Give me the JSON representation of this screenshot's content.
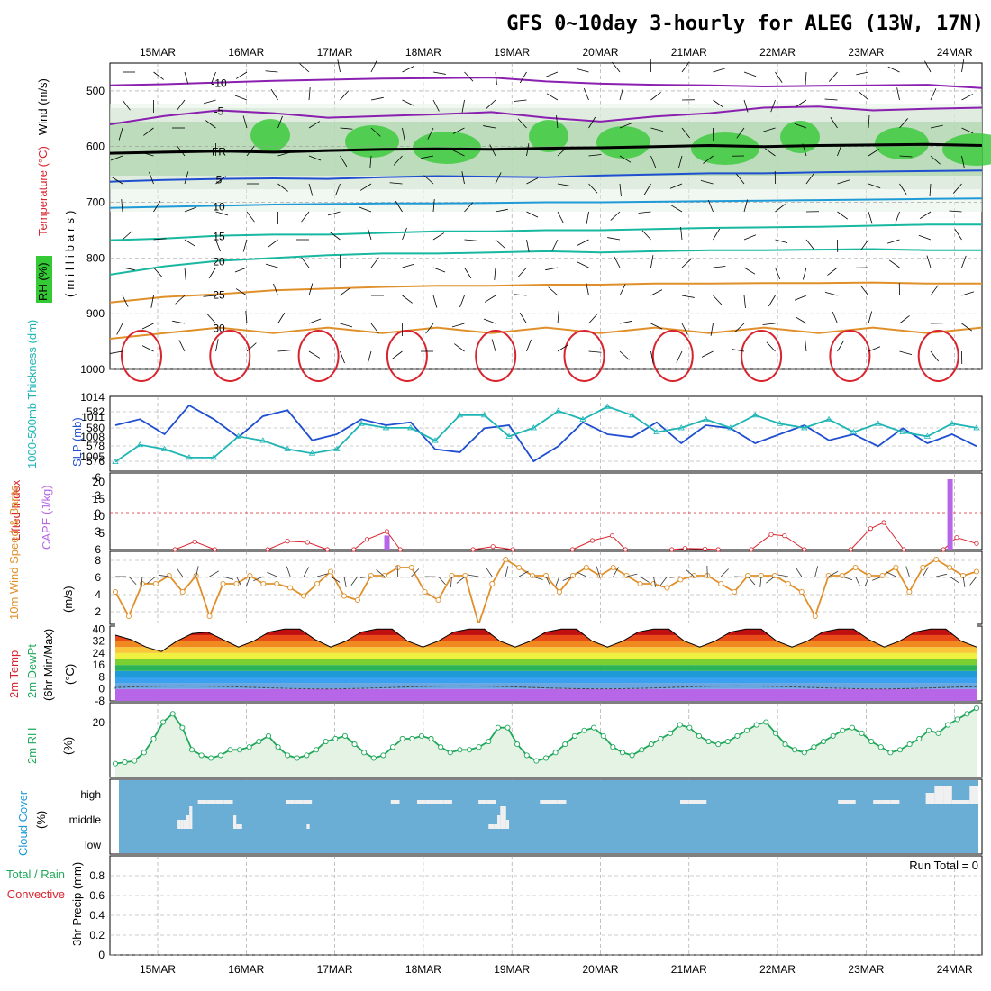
{
  "title": "GFS 0~10day 3-hourly for ALEG (13W, 17N)",
  "dates": [
    "15MAR",
    "16MAR",
    "17MAR",
    "18MAR",
    "19MAR",
    "20MAR",
    "21MAR",
    "22MAR",
    "23MAR",
    "24MAR"
  ],
  "colors": {
    "purple": "#8a1fb0",
    "blue": "#1f4fd0",
    "cyan": "#1e9bd6",
    "teal": "#17b7a0",
    "green": "#1fa85a",
    "orange": "#e0902a",
    "red": "#d8242e",
    "rhgreen": "#36c936"
  },
  "chart_data": [
    {
      "type": "contour",
      "name": "upper-air-cross-section",
      "ylabel": "(millibars)",
      "labels": {
        "wind": "Wind (m/s)",
        "temp": "Temperature (°C)",
        "rh": "RH (%)"
      },
      "y_ticks": [
        500,
        600,
        700,
        800,
        900,
        1000
      ],
      "ylim": [
        1000,
        450
      ],
      "isotherms": [
        {
          "value": -10,
          "label": "-10",
          "levels": [
            490,
            488,
            485,
            482,
            480,
            478,
            477,
            476,
            483,
            487,
            489,
            490,
            492,
            491,
            490,
            489,
            495
          ]
        },
        {
          "value": -5,
          "label": "-5",
          "levels": [
            560,
            545,
            535,
            540,
            548,
            545,
            542,
            538,
            548,
            555,
            546,
            540,
            530,
            528,
            535,
            532,
            530
          ]
        },
        {
          "value": 0,
          "label": "FR",
          "levels": [
            612,
            610,
            608,
            610,
            607,
            605,
            604,
            605,
            603,
            602,
            600,
            598,
            600,
            598,
            597,
            596,
            598
          ]
        },
        {
          "value": 5,
          "label": "5",
          "levels": [
            663,
            660,
            658,
            657,
            658,
            655,
            653,
            654,
            655,
            652,
            650,
            648,
            648,
            646,
            645,
            644,
            643
          ]
        },
        {
          "value": 10,
          "label": "10",
          "levels": [
            710,
            708,
            706,
            704,
            703,
            702,
            702,
            701,
            700,
            700,
            699,
            698,
            697,
            696,
            695,
            694,
            693
          ]
        },
        {
          "value": 15,
          "label": "15",
          "levels": [
            768,
            765,
            760,
            758,
            758,
            755,
            752,
            752,
            750,
            750,
            748,
            746,
            745,
            744,
            742,
            740,
            740
          ]
        },
        {
          "value": 20,
          "label": "20",
          "levels": [
            830,
            815,
            805,
            800,
            795,
            792,
            792,
            790,
            788,
            790,
            788,
            786,
            786,
            785,
            784,
            786,
            786
          ]
        },
        {
          "value": 25,
          "label": "25",
          "levels": [
            880,
            870,
            865,
            858,
            855,
            852,
            850,
            850,
            848,
            848,
            846,
            846,
            845,
            845,
            844,
            846,
            846
          ]
        },
        {
          "value": 30,
          "label": "30",
          "levels": [
            945,
            935,
            925,
            935,
            925,
            935,
            925,
            935,
            925,
            935,
            925,
            935,
            925,
            935,
            925,
            935,
            925
          ]
        }
      ]
    },
    {
      "type": "line",
      "name": "thickness-slp",
      "labels": {
        "thickness": "1000-500mb Thickness (dm)",
        "slp": "SLP (mb)"
      },
      "y_ticks_left": [
        "582",
        "580",
        "578",
        "576"
      ],
      "y_ticks_right": [
        "1014",
        "1011",
        "1008",
        "1005"
      ],
      "series": [
        {
          "name": "SLP (mb)",
          "color": "#1f4fd0",
          "values": [
            1010.5,
            1011.5,
            1009,
            1013.8,
            1011.5,
            1008.5,
            1012,
            1013,
            1008,
            1009,
            1011.5,
            1010.5,
            1011,
            1006.5,
            1006,
            1010,
            1010.5,
            1004.5,
            1007,
            1011,
            1009,
            1008.5,
            1011,
            1007.5,
            1010.5,
            1010,
            1007.5,
            1009,
            1010.5,
            1008,
            1009,
            1007,
            1010,
            1007.5,
            1009,
            1007
          ]
        },
        {
          "name": "Thickness (dm)",
          "color": "#1fb5b5",
          "values": [
            575.5,
            577.5,
            577,
            576,
            576,
            578.5,
            578,
            577,
            576.5,
            577,
            580,
            579.5,
            579.5,
            578,
            581,
            581,
            578.5,
            579.5,
            581.5,
            580.5,
            582,
            581,
            579,
            579.5,
            580.5,
            579.5,
            581,
            580,
            579.5,
            580.5,
            579,
            580,
            579,
            578.5,
            580,
            579.5
          ]
        }
      ]
    },
    {
      "type": "line",
      "name": "cape-lifted-index",
      "labels": {
        "li": "Lifted Index",
        "cape": "CAPE (J/kg)"
      },
      "y_ticks_left": [
        "-6",
        "-3",
        "0",
        "3",
        "6"
      ],
      "y_ticks_right": [
        "20",
        "15",
        "10",
        "5"
      ],
      "segments": [
        {
          "x": [
            0.9,
            1.2,
            1.5
          ],
          "values": [
            6,
            4.7,
            6
          ]
        },
        {
          "x": [
            2.3,
            2.6,
            2.9,
            3.2
          ],
          "values": [
            6,
            4.6,
            4.8,
            6
          ]
        },
        {
          "x": [
            3.6,
            3.8,
            4.1,
            4.3
          ],
          "values": [
            6,
            4.3,
            3,
            6
          ]
        },
        {
          "x": [
            5.4,
            5.7,
            6.0
          ],
          "values": [
            6,
            5.5,
            6
          ]
        },
        {
          "x": [
            6.9,
            7.2,
            7.5,
            7.7
          ],
          "values": [
            6,
            4.5,
            3.7,
            6
          ]
        },
        {
          "x": [
            8.4,
            8.6,
            8.9,
            9.1
          ],
          "values": [
            6,
            5.8,
            5.9,
            6
          ]
        },
        {
          "x": [
            9.6,
            9.9,
            10.1,
            10.4
          ],
          "values": [
            6,
            3.5,
            3.7,
            6
          ]
        },
        {
          "x": [
            11.1,
            11.4,
            11.6,
            11.9
          ],
          "values": [
            6,
            2.5,
            1.5,
            6
          ]
        },
        {
          "x": [
            12.5,
            12.7,
            13.0
          ],
          "values": [
            6,
            4.0,
            5.0
          ]
        }
      ],
      "cape_bars": [
        {
          "x": 4.1,
          "value": 4
        },
        {
          "x": 12.6,
          "value": 20
        }
      ]
    },
    {
      "type": "line",
      "name": "10m-wind-speed",
      "labels": {
        "main": "10m Wind Speed & Barbs",
        "unit": "(m/s)"
      },
      "y_ticks": [
        "8",
        "6",
        "4",
        "2"
      ],
      "values": [
        4,
        1,
        5,
        5,
        6,
        4,
        6,
        1,
        5,
        5,
        6,
        5,
        5,
        4.5,
        3.5,
        5,
        6.5,
        3.5,
        3,
        6,
        6,
        7,
        7,
        4,
        3,
        6,
        6,
        0,
        5,
        8,
        7,
        6,
        6,
        4,
        6,
        7,
        6,
        7,
        6,
        5,
        5,
        4.5,
        5.5,
        6,
        6,
        5,
        4,
        6,
        6,
        6,
        5,
        4,
        1,
        6,
        6,
        7,
        6,
        6,
        7,
        4,
        7,
        8,
        7,
        6,
        6.5
      ]
    },
    {
      "type": "area",
      "name": "2m-temperature",
      "labels": {
        "temp": "2m Temp",
        "dewpt": "2m DewPt",
        "minmax": "(6hr Min/Max)",
        "unit": "(°C)"
      },
      "y_ticks": [
        "40",
        "32",
        "24",
        "16",
        "8",
        "0",
        "-8"
      ],
      "temps": [
        36,
        33,
        28,
        25,
        32,
        37,
        38,
        33,
        28,
        32,
        38,
        40,
        40,
        33,
        28,
        32,
        38,
        40,
        40,
        32,
        28,
        32,
        38,
        40,
        40,
        32,
        28,
        32,
        38,
        40,
        40,
        32,
        28,
        32,
        38,
        40,
        40,
        32,
        28,
        32,
        38,
        40,
        40,
        32,
        28,
        32,
        38,
        40,
        40,
        33,
        28,
        32,
        38,
        40,
        40,
        32,
        28
      ]
    },
    {
      "type": "line",
      "name": "2m-relative-humidity",
      "labels": {
        "main": "2m RH",
        "unit": "(%)"
      },
      "y_ticks": [
        "20"
      ],
      "values": [
        5,
        5.5,
        6,
        9,
        14,
        20,
        23,
        18,
        10,
        8,
        7,
        8,
        10,
        10,
        11,
        13,
        15,
        11,
        8,
        7,
        8,
        10,
        13,
        14,
        15,
        12,
        9,
        7,
        8,
        11,
        14,
        14,
        15,
        14,
        11,
        9,
        10,
        10,
        11,
        13,
        18,
        18,
        12,
        8,
        6,
        7,
        9,
        12,
        15,
        17,
        18,
        15,
        11,
        9,
        8,
        10,
        12,
        14,
        16,
        19,
        18,
        15,
        13,
        12,
        13,
        15,
        17,
        19,
        20,
        16,
        12,
        10,
        9,
        11,
        13,
        15,
        17,
        18,
        16,
        13,
        11,
        9,
        10,
        12,
        14,
        17,
        16,
        19,
        21,
        23,
        25
      ]
    },
    {
      "type": "bar",
      "name": "cloud-cover",
      "labels": {
        "main": "Cloud Cover",
        "unit": "(%)"
      },
      "levels": [
        "high",
        "middle",
        "low"
      ],
      "high": [
        0,
        0,
        0,
        0,
        0,
        0,
        0,
        0,
        0,
        20,
        20,
        20,
        20,
        0,
        0,
        0,
        0,
        0,
        0,
        20,
        20,
        20,
        0,
        0,
        0,
        0,
        0,
        0,
        0,
        0,
        0,
        20,
        0,
        0,
        20,
        20,
        20,
        20,
        0,
        0,
        0,
        20,
        20,
        0,
        0,
        0,
        0,
        0,
        20,
        20,
        20,
        0,
        0,
        0,
        0,
        0,
        0,
        0,
        0,
        0,
        0,
        0,
        0,
        0,
        20,
        20,
        20,
        0,
        0,
        0,
        0,
        0,
        0,
        0,
        0,
        0,
        0,
        0,
        0,
        0,
        0,
        0,
        20,
        20,
        0,
        0,
        20,
        20,
        20,
        0,
        0,
        0,
        60,
        100,
        100,
        20,
        20,
        100
      ],
      "middle": [
        0,
        0,
        0,
        0,
        0,
        0,
        0,
        0,
        0,
        0,
        0,
        0,
        0,
        0,
        0,
        0,
        0,
        0,
        0,
        0,
        40,
        40,
        40,
        60,
        100,
        0,
        0,
        0,
        0,
        0,
        0,
        0,
        0,
        0,
        0,
        0,
        0,
        0,
        0,
        60,
        20,
        20,
        0,
        0,
        0,
        0,
        0,
        0,
        0,
        0,
        0,
        0,
        0,
        0,
        0,
        0,
        0,
        0,
        0,
        0,
        0,
        0,
        0,
        0,
        20,
        0,
        0,
        0,
        0,
        0,
        0,
        0,
        0,
        0,
        0,
        0,
        0,
        0,
        0,
        0,
        0,
        0,
        0,
        0,
        0,
        0,
        0,
        0,
        0,
        0,
        0,
        0,
        0,
        0,
        0,
        0,
        0,
        0,
        0,
        0,
        0,
        0,
        0,
        0,
        0,
        0,
        0,
        0,
        0,
        0,
        0,
        0,
        0,
        0,
        0,
        0,
        0,
        0,
        0,
        0,
        0,
        0,
        0,
        0,
        0,
        0,
        20,
        20,
        20,
        60,
        100,
        100,
        40,
        0,
        0,
        0,
        0,
        0,
        0,
        0,
        0,
        0,
        0,
        0,
        0,
        0,
        0,
        0,
        0,
        0,
        0,
        0,
        0,
        0,
        0,
        0,
        0,
        0,
        0,
        0,
        0,
        0,
        0,
        0,
        0,
        0,
        0,
        0,
        0,
        0,
        0,
        0,
        0,
        0,
        0,
        0,
        0,
        0,
        0,
        0,
        0,
        0,
        0,
        0,
        0,
        0,
        0,
        0,
        0,
        0,
        0,
        0,
        0,
        0,
        0,
        0,
        0,
        0,
        0,
        0,
        0,
        0,
        0,
        0,
        0,
        0,
        0,
        0,
        0,
        0,
        0,
        0,
        0,
        0,
        0,
        0,
        0,
        0,
        0,
        0,
        0,
        0,
        0,
        0,
        0,
        0,
        0,
        0,
        0,
        0,
        0,
        0,
        0,
        0,
        0,
        0,
        0,
        0,
        0,
        0,
        0,
        0,
        0,
        0,
        0,
        0,
        0,
        0,
        0,
        0,
        0,
        0,
        0,
        0,
        0,
        0,
        0,
        0,
        0,
        0,
        0,
        0,
        0,
        0,
        0,
        0,
        0,
        0,
        0,
        0,
        0,
        0,
        0,
        0,
        0,
        0,
        0,
        0,
        0,
        0,
        0,
        0,
        0,
        0,
        0,
        0,
        0,
        0,
        0,
        0,
        0,
        0,
        0
      ]
    },
    {
      "type": "bar",
      "name": "3hr-precip",
      "labels": {
        "main": "3hr Precip (mm)",
        "total": "Total / Rain",
        "convective": "Convective"
      },
      "run_total": "Run Total = 0",
      "y_ticks": [
        "0.8",
        "0.6",
        "0.4",
        "0.2",
        "0"
      ],
      "values": []
    }
  ]
}
